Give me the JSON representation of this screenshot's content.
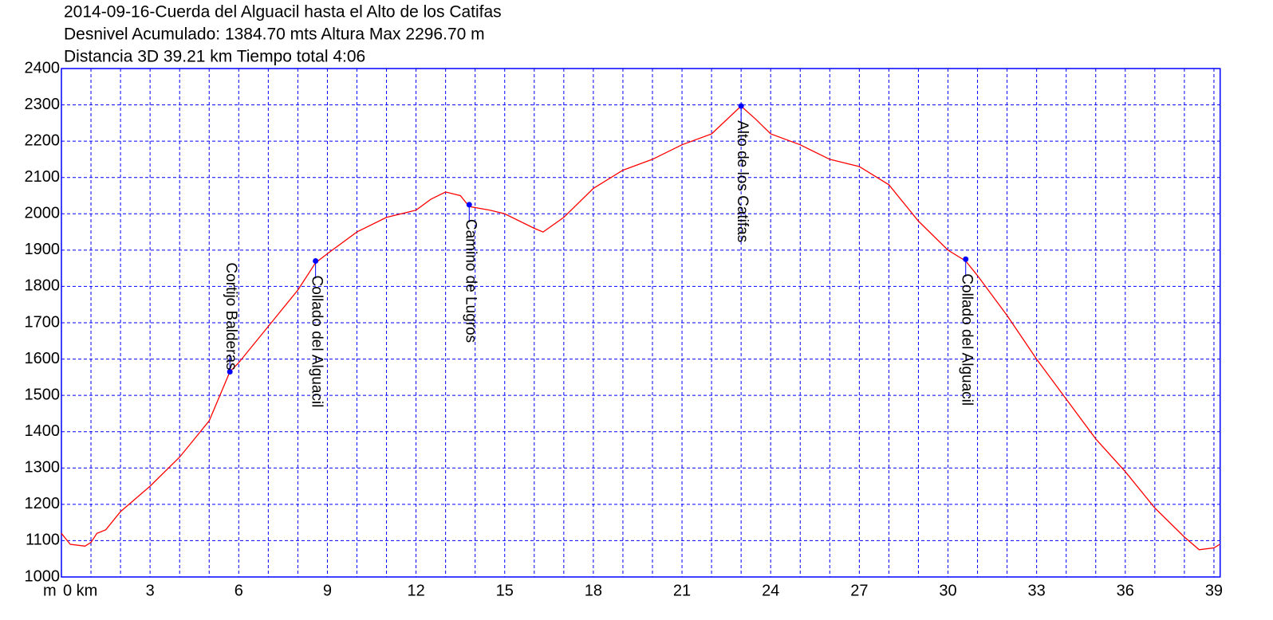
{
  "chart_data": {
    "type": "line",
    "title_lines": [
      "2014-09-16-Cuerda del Alguacil hasta el Alto de los Catifas",
      "Desnivel Acumulado: 1384.70 mts  Altura Max 2296.70 m",
      "Distancia 3D 39.21 km  Tiempo total 4:06"
    ],
    "y_unit": "m",
    "x": [
      0,
      0.3,
      0.8,
      1.0,
      1.2,
      1.5,
      2,
      3,
      4,
      5,
      5.7,
      6,
      7,
      8,
      8.6,
      9,
      10,
      11,
      12,
      12.5,
      13,
      13.5,
      13.8,
      14.5,
      15,
      16,
      16.3,
      17,
      18,
      19,
      20,
      21,
      22,
      23,
      23.5,
      24,
      25,
      26,
      27,
      28,
      29,
      30,
      30.6,
      31,
      32,
      33,
      34,
      35,
      36,
      37,
      38,
      38.5,
      39,
      39.2
    ],
    "series": [
      {
        "name": "Altura",
        "color": "#ff0000",
        "values": [
          1120,
          1090,
          1085,
          1095,
          1120,
          1130,
          1180,
          1250,
          1330,
          1430,
          1565,
          1590,
          1690,
          1790,
          1865,
          1890,
          1950,
          1990,
          2010,
          2040,
          2060,
          2050,
          2020,
          2010,
          2000,
          1960,
          1950,
          1990,
          2070,
          2120,
          2150,
          2190,
          2220,
          2296.7,
          2260,
          2220,
          2190,
          2150,
          2130,
          2080,
          1980,
          1900,
          1870,
          1830,
          1720,
          1600,
          1490,
          1380,
          1290,
          1190,
          1110,
          1075,
          1080,
          1090
        ]
      }
    ],
    "waypoints": [
      {
        "name": "Cortijo Balderas",
        "x": 5.7,
        "y": 1565,
        "label_side": "above"
      },
      {
        "name": "Collado del Alguacil",
        "x": 8.6,
        "y": 1870,
        "label_side": "below"
      },
      {
        "name": "Camino de Lugros",
        "x": 13.8,
        "y": 2025,
        "label_side": "below"
      },
      {
        "name": "Alto de los Catifas",
        "x": 23.0,
        "y": 2296.7,
        "label_side": "below"
      },
      {
        "name": "Collado del Alguacil",
        "x": 30.6,
        "y": 1875,
        "label_side": "below"
      }
    ],
    "marker_color": "#0000ff",
    "axis_color": "#0000ff",
    "xlim": [
      0,
      39.21
    ],
    "ylim": [
      1000,
      2400
    ],
    "xticks": [
      {
        "value": 0,
        "label": "0 km"
      },
      3,
      6,
      9,
      12,
      15,
      18,
      21,
      24,
      27,
      30,
      33,
      36,
      39
    ],
    "x_minor_ticks": [
      1,
      2,
      4,
      5,
      7,
      8,
      10,
      11,
      13,
      14,
      16,
      17,
      19,
      20,
      22,
      23,
      25,
      26,
      28,
      29,
      31,
      32,
      34,
      35,
      37,
      38
    ],
    "yticks": [
      1000,
      1100,
      1200,
      1300,
      1400,
      1500,
      1600,
      1700,
      1800,
      1900,
      2000,
      2100,
      2200,
      2300,
      2400
    ],
    "grid": true
  }
}
